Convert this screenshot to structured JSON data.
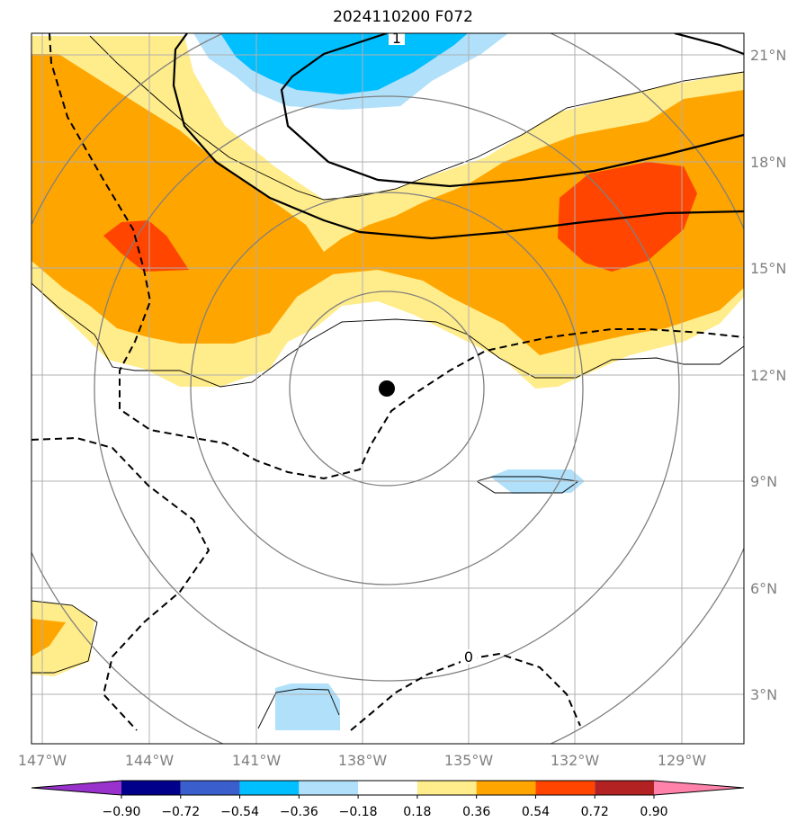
{
  "title": "2024110200 F072",
  "map": {
    "lon_labels": [
      "147°W",
      "144°W",
      "141°W",
      "138°W",
      "135°W",
      "132°W",
      "129°W"
    ],
    "lat_labels": [
      "21°N",
      "18°N",
      "15°N",
      "12°N",
      "9°N",
      "6°N",
      "3°N"
    ],
    "contour_labels": [
      "1",
      "0"
    ],
    "storm_center": {
      "lon": "137.3°W",
      "lat": "11.6°N"
    }
  },
  "colorbar": {
    "tick_labels": [
      "−0.90",
      "−0.72",
      "−0.54",
      "−0.36",
      "−0.18",
      "0.18",
      "0.36",
      "0.54",
      "0.72",
      "0.90"
    ],
    "colors": [
      "#9932cc",
      "#00008b",
      "#3a5fcd",
      "#00bfff",
      "#b0e0fa",
      "#ffffff",
      "#ffec8b",
      "#ffa500",
      "#ff4500",
      "#b22222",
      "#ff82ab"
    ]
  }
}
